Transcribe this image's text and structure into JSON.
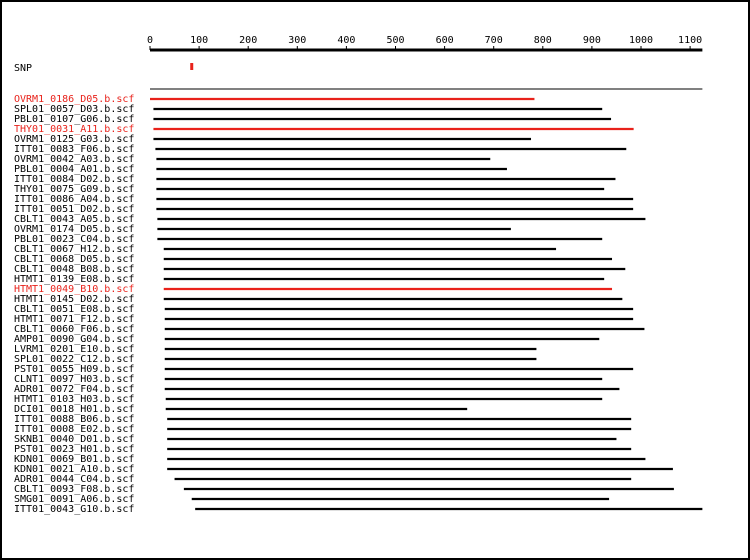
{
  "ruler": {
    "ticks": [
      0,
      100,
      200,
      300,
      400,
      500,
      600,
      700,
      800,
      900,
      1000,
      1100
    ],
    "max": 1125
  },
  "snp": {
    "label": "SNP",
    "position": 85,
    "color": "#e8221b"
  },
  "colors": {
    "normal": "#000000",
    "highlight": "#e8221b"
  },
  "reads": [
    {
      "name": "OVRM1_0186_D05.b.scf",
      "start": 0,
      "end": 783,
      "highlight": true
    },
    {
      "name": "SPL01_0057_D03.b.scf",
      "start": 7,
      "end": 921,
      "highlight": false
    },
    {
      "name": "PBL01_0107_G06.b.scf",
      "start": 7,
      "end": 939,
      "highlight": false
    },
    {
      "name": "THY01_0031_A11.b.scf",
      "start": 7,
      "end": 985,
      "highlight": true
    },
    {
      "name": "OVRM1_0125_G03.b.scf",
      "start": 7,
      "end": 776,
      "highlight": false
    },
    {
      "name": "ITT01_0083_F06.b.scf",
      "start": 11,
      "end": 970,
      "highlight": false
    },
    {
      "name": "OVRM1_0042_A03.b.scf",
      "start": 13,
      "end": 693,
      "highlight": false
    },
    {
      "name": "PBL01_0004_A01.b.scf",
      "start": 13,
      "end": 727,
      "highlight": false
    },
    {
      "name": "ITT01_0084_D02.b.scf",
      "start": 13,
      "end": 948,
      "highlight": false
    },
    {
      "name": "THY01_0075_G09.b.scf",
      "start": 13,
      "end": 925,
      "highlight": false
    },
    {
      "name": "ITT01_0086_A04.b.scf",
      "start": 13,
      "end": 984,
      "highlight": false
    },
    {
      "name": "ITT01_0051_D02.b.scf",
      "start": 13,
      "end": 984,
      "highlight": false
    },
    {
      "name": "CBLT1_0043_A05.b.scf",
      "start": 15,
      "end": 1009,
      "highlight": false
    },
    {
      "name": "OVRM1_0174_D05.b.scf",
      "start": 15,
      "end": 735,
      "highlight": false
    },
    {
      "name": "PBL01_0023_C04.b.scf",
      "start": 15,
      "end": 921,
      "highlight": false
    },
    {
      "name": "CBLT1_0067_H12.b.scf",
      "start": 28,
      "end": 827,
      "highlight": false
    },
    {
      "name": "CBLT1_0068_D05.b.scf",
      "start": 28,
      "end": 941,
      "highlight": false
    },
    {
      "name": "CBLT1_0048_B08.b.scf",
      "start": 28,
      "end": 968,
      "highlight": false
    },
    {
      "name": "HTMT1_0139_E08.b.scf",
      "start": 28,
      "end": 925,
      "highlight": false
    },
    {
      "name": "HTMT1_0049_B10.b.scf",
      "start": 28,
      "end": 941,
      "highlight": true
    },
    {
      "name": "HTMT1_0145_D02.b.scf",
      "start": 28,
      "end": 962,
      "highlight": false
    },
    {
      "name": "CBLT1_0051_E08.b.scf",
      "start": 30,
      "end": 984,
      "highlight": false
    },
    {
      "name": "HTMT1_0071_F12.b.scf",
      "start": 30,
      "end": 984,
      "highlight": false
    },
    {
      "name": "CBLT1_0060_F06.b.scf",
      "start": 30,
      "end": 1007,
      "highlight": false
    },
    {
      "name": "AMP01_0090_G04.b.scf",
      "start": 30,
      "end": 915,
      "highlight": false
    },
    {
      "name": "LVRM1_0201_E10.b.scf",
      "start": 30,
      "end": 787,
      "highlight": false
    },
    {
      "name": "SPL01_0022_C12.b.scf",
      "start": 30,
      "end": 787,
      "highlight": false
    },
    {
      "name": "PST01_0055_H09.b.scf",
      "start": 30,
      "end": 984,
      "highlight": false
    },
    {
      "name": "CLNT1_0097_H03.b.scf",
      "start": 30,
      "end": 921,
      "highlight": false
    },
    {
      "name": "ADR01_0072_F04.b.scf",
      "start": 30,
      "end": 956,
      "highlight": false
    },
    {
      "name": "HTMT1_0103_H03.b.scf",
      "start": 32,
      "end": 921,
      "highlight": false
    },
    {
      "name": "DCI01_0018_H01.b.scf",
      "start": 32,
      "end": 646,
      "highlight": false
    },
    {
      "name": "ITT01_0088_B06.b.scf",
      "start": 35,
      "end": 980,
      "highlight": false
    },
    {
      "name": "ITT01_0008_E02.b.scf",
      "start": 35,
      "end": 980,
      "highlight": false
    },
    {
      "name": "SKNB1_0040_D01.b.scf",
      "start": 35,
      "end": 950,
      "highlight": false
    },
    {
      "name": "PST01_0023_H01.b.scf",
      "start": 35,
      "end": 980,
      "highlight": false
    },
    {
      "name": "KDN01_0069_B01.b.scf",
      "start": 35,
      "end": 1009,
      "highlight": false
    },
    {
      "name": "KDN01_0021_A10.b.scf",
      "start": 35,
      "end": 1065,
      "highlight": false
    },
    {
      "name": "ADR01_0044_C04.b.scf",
      "start": 50,
      "end": 980,
      "highlight": false
    },
    {
      "name": "CBLT1_0093_F08.b.scf",
      "start": 69,
      "end": 1067,
      "highlight": false
    },
    {
      "name": "SMG01_0091_A06.b.scf",
      "start": 85,
      "end": 935,
      "highlight": false
    },
    {
      "name": "ITT01_0043_G10.b.scf",
      "start": 92,
      "end": 1125,
      "highlight": false
    }
  ]
}
